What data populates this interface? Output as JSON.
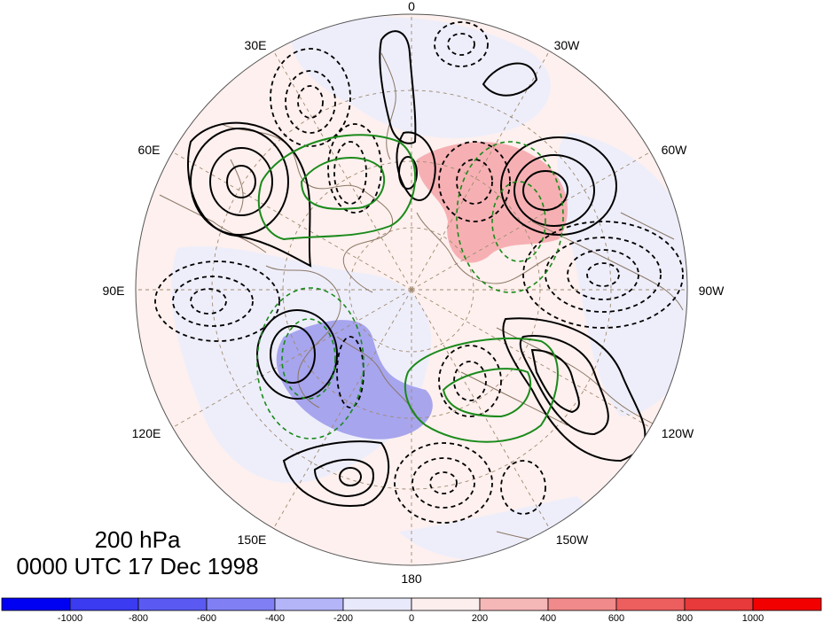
{
  "title": {
    "level": "200 hPa",
    "valid_time": "0000 UTC 17 Dec 1998"
  },
  "longitude_labels": [
    "0",
    "30W",
    "60W",
    "90W",
    "120W",
    "150W",
    "180",
    "150E",
    "120E",
    "90E",
    "60E",
    "30E"
  ],
  "colorbar": {
    "tick_labels": [
      "-1000",
      "-800",
      "-600",
      "-400",
      "-200",
      "0",
      "200",
      "400",
      "600",
      "800",
      "1000"
    ],
    "colors": [
      "#0000f2",
      "#3b3bf2",
      "#5a5af2",
      "#8080f4",
      "#b4b4f8",
      "#e9e9fc",
      "#fdeeee",
      "#f6b7b7",
      "#f18a8a",
      "#ed5e5e",
      "#e83a3a",
      "#f20000"
    ]
  },
  "colors": {
    "coastline": "#8b7765",
    "contour": "#000000",
    "green_contour": "#1a8a1a",
    "grid": "#a08a70",
    "shade_positive": "#f28c92",
    "shade_negative": "#8a86e6",
    "background_pos": "#fdf0ee",
    "background_neg": "#eeeefb"
  }
}
